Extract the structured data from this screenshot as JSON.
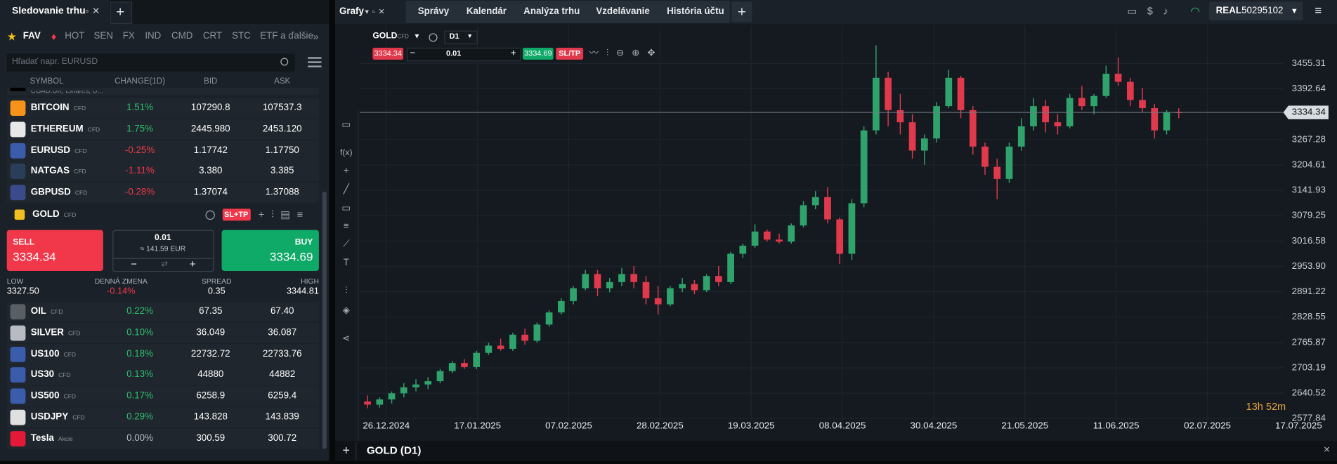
{
  "watchlist": {
    "title": "Sledovanie trhu",
    "tabs": [
      "FAV",
      "HOT",
      "SEN",
      "FX",
      "IND",
      "CMD",
      "CRT",
      "STC",
      "ETF a ďalšie"
    ],
    "search_placeholder": "Hľadať napr. EURUSD",
    "columns": [
      "SYMBOL",
      "CHANGE(1D)",
      "BID",
      "ASK"
    ],
    "partial_row": "CGAU.UK, iShares, U...",
    "rows_top": [
      {
        "symbol": "BITCOIN",
        "type": "CFD",
        "change": "1.51%",
        "bid": "107290.8",
        "ask": "107537.3",
        "icon_color": "#f7931a"
      },
      {
        "symbol": "ETHEREUM",
        "type": "CFD",
        "change": "1.75%",
        "bid": "2445.980",
        "ask": "2453.120",
        "icon_color": "#e8e8e8"
      },
      {
        "symbol": "EURUSD",
        "type": "CFD",
        "change": "-0.25%",
        "bid": "1.17742",
        "ask": "1.17750",
        "icon_color": "#3b5bab"
      },
      {
        "symbol": "NATGAS",
        "type": "CFD",
        "change": "-1.11%",
        "bid": "3.380",
        "ask": "3.385",
        "icon_color": "#2a3d59"
      },
      {
        "symbol": "GBPUSD",
        "type": "CFD",
        "change": "-0.28%",
        "bid": "1.37074",
        "ask": "1.37088",
        "icon_color": "#3b4a8a"
      }
    ],
    "selected": {
      "symbol": "GOLD",
      "type": "CFD",
      "icon_color": "#f0c020",
      "sltp": "SL+TP",
      "sell_label": "SELL",
      "sell": "3334.34",
      "buy_label": "BUY",
      "buy": "3334.69",
      "volume": "0.01",
      "volume_eur": "≈ 141.59 EUR",
      "stats": [
        {
          "label": "LOW",
          "value": "3327.50"
        },
        {
          "label": "DENNÁ ZMENA",
          "value": "-0.14%"
        },
        {
          "label": "SPREAD",
          "value": "0.35"
        },
        {
          "label": "HIGH",
          "value": "3344.81"
        }
      ]
    },
    "rows_bottom": [
      {
        "symbol": "OIL",
        "type": "CFD",
        "change": "0.22%",
        "bid": "67.35",
        "ask": "67.40",
        "icon_color": "#5a5f66"
      },
      {
        "symbol": "SILVER",
        "type": "CFD",
        "change": "0.10%",
        "bid": "36.049",
        "ask": "36.087",
        "icon_color": "#b8bcc2"
      },
      {
        "symbol": "US100",
        "type": "CFD",
        "change": "0.18%",
        "bid": "22732.72",
        "ask": "22733.76",
        "icon_color": "#3b5bab"
      },
      {
        "symbol": "US30",
        "type": "CFD",
        "change": "0.13%",
        "bid": "44880",
        "ask": "44882",
        "icon_color": "#3b5bab"
      },
      {
        "symbol": "US500",
        "type": "CFD",
        "change": "0.17%",
        "bid": "6258.9",
        "ask": "6259.4",
        "icon_color": "#3b5bab"
      },
      {
        "symbol": "USDJPY",
        "type": "CFD",
        "change": "0.29%",
        "bid": "143.828",
        "ask": "143.839",
        "icon_color": "#e0e0e0"
      },
      {
        "symbol": "Tesla",
        "type": "Akcie",
        "change": "0.00%",
        "bid": "300.59",
        "ask": "300.72",
        "icon_color": "#e31937"
      }
    ]
  },
  "nav": {
    "menu": "Grafy",
    "tabs": [
      "Správy",
      "Kalendár",
      "Analýza trhu",
      "Vzdelávanie",
      "História účtu"
    ],
    "account_type": "REAL",
    "account_id": "50295102"
  },
  "toolbar": {
    "indicators": "f(x)"
  },
  "chart_data": {
    "type": "candlestick",
    "symbol": "GOLD",
    "symbol_type": "CFD",
    "timeframe": "D1",
    "sell_price": "3334.34",
    "volume": "0.01",
    "buy_price": "3334.69",
    "sltp": "SL/TP",
    "footer_title": "GOLD (D1)",
    "countdown": "13h 52m",
    "up_color": "#2fa36b",
    "down_color": "#e0394c",
    "last_price": 3334.34,
    "ylim": [
      2572,
      3528
    ],
    "yticks": [
      3455.31,
      3392.64,
      3267.28,
      3204.61,
      3141.93,
      3079.25,
      3016.58,
      {
        "value": 2953.9,
        "label": "2953.90"
      },
      2891.22,
      2828.55,
      2765.87,
      2703.19,
      2640.52,
      2577.84
    ],
    "xticks": [
      "26.12.2024",
      "17.01.2025",
      "07.02.2025",
      "28.02.2025",
      "19.03.2025",
      "08.04.2025",
      "30.04.2025",
      "21.05.2025",
      "11.06.2025",
      "02.07.2025",
      "17.07.2025"
    ],
    "candles": [
      [
        2620,
        2635,
        2603,
        2612
      ],
      [
        2612,
        2630,
        2605,
        2625
      ],
      [
        2625,
        2645,
        2615,
        2640
      ],
      [
        2640,
        2665,
        2630,
        2655
      ],
      [
        2655,
        2675,
        2645,
        2662
      ],
      [
        2662,
        2680,
        2650,
        2670
      ],
      [
        2670,
        2700,
        2665,
        2695
      ],
      [
        2695,
        2720,
        2690,
        2715
      ],
      [
        2715,
        2725,
        2700,
        2705
      ],
      [
        2705,
        2745,
        2700,
        2740
      ],
      [
        2740,
        2765,
        2735,
        2758
      ],
      [
        2758,
        2775,
        2745,
        2750
      ],
      [
        2750,
        2790,
        2745,
        2785
      ],
      [
        2785,
        2800,
        2760,
        2770
      ],
      [
        2770,
        2815,
        2765,
        2810
      ],
      [
        2810,
        2845,
        2805,
        2840
      ],
      [
        2840,
        2875,
        2835,
        2868
      ],
      [
        2868,
        2905,
        2860,
        2900
      ],
      [
        2900,
        2945,
        2895,
        2935
      ],
      [
        2935,
        2945,
        2880,
        2900
      ],
      [
        2900,
        2925,
        2890,
        2915
      ],
      [
        2915,
        2950,
        2905,
        2935
      ],
      [
        2935,
        2955,
        2900,
        2915
      ],
      [
        2915,
        2930,
        2860,
        2875
      ],
      [
        2875,
        2905,
        2835,
        2860
      ],
      [
        2860,
        2905,
        2855,
        2900
      ],
      [
        2900,
        2925,
        2890,
        2910
      ],
      [
        2910,
        2920,
        2885,
        2895
      ],
      [
        2895,
        2935,
        2890,
        2930
      ],
      [
        2930,
        2955,
        2905,
        2915
      ],
      [
        2915,
        2990,
        2910,
        2985
      ],
      [
        2985,
        3010,
        2975,
        3005
      ],
      [
        3005,
        3058,
        3000,
        3040
      ],
      [
        3040,
        3045,
        3015,
        3020
      ],
      [
        3020,
        3035,
        3010,
        3015
      ],
      [
        3015,
        3060,
        3010,
        3055
      ],
      [
        3055,
        3115,
        3050,
        3105
      ],
      [
        3105,
        3140,
        3095,
        3125
      ],
      [
        3125,
        3150,
        3060,
        3070
      ],
      [
        3070,
        3075,
        2960,
        2985
      ],
      [
        2985,
        3120,
        2970,
        3110
      ],
      [
        3110,
        3300,
        3100,
        3290
      ],
      [
        3290,
        3500,
        3280,
        3420
      ],
      [
        3420,
        3435,
        3300,
        3340
      ],
      [
        3340,
        3380,
        3280,
        3310
      ],
      [
        3310,
        3330,
        3220,
        3240
      ],
      [
        3240,
        3280,
        3205,
        3270
      ],
      [
        3270,
        3360,
        3260,
        3350
      ],
      [
        3350,
        3440,
        3345,
        3420
      ],
      [
        3420,
        3425,
        3320,
        3340
      ],
      [
        3340,
        3350,
        3230,
        3250
      ],
      [
        3250,
        3260,
        3180,
        3200
      ],
      [
        3200,
        3220,
        3120,
        3170
      ],
      [
        3170,
        3260,
        3160,
        3250
      ],
      [
        3250,
        3320,
        3240,
        3300
      ],
      [
        3300,
        3370,
        3290,
        3350
      ],
      [
        3350,
        3365,
        3285,
        3310
      ],
      [
        3310,
        3330,
        3280,
        3300
      ],
      [
        3300,
        3380,
        3295,
        3370
      ],
      [
        3370,
        3400,
        3340,
        3350
      ],
      [
        3350,
        3380,
        3330,
        3375
      ],
      [
        3375,
        3450,
        3370,
        3430
      ],
      [
        3430,
        3470,
        3400,
        3410
      ],
      [
        3410,
        3420,
        3350,
        3365
      ],
      [
        3365,
        3395,
        3335,
        3345
      ],
      [
        3345,
        3355,
        3270,
        3290
      ],
      [
        3290,
        3340,
        3280,
        3335
      ],
      [
        3335,
        3345,
        3320,
        3334.34
      ]
    ]
  }
}
